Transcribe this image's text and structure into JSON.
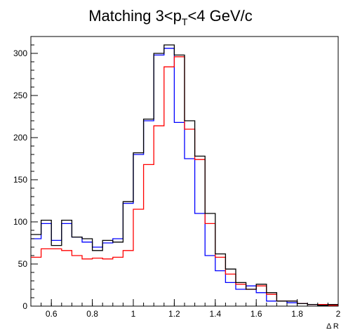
{
  "chart_data": {
    "type": "line",
    "title_main": "Matching 3<p",
    "title_sub": "T",
    "title_tail": "<4 GeV/c",
    "xlabel": "Δ R",
    "ylabel": "",
    "xlim": [
      0.5,
      2.0
    ],
    "ylim": [
      0,
      320
    ],
    "x_ticks": [
      0.6,
      0.8,
      1,
      1.2,
      1.4,
      1.6,
      1.8,
      2
    ],
    "x_tick_labels": [
      "0.6",
      "0.8",
      "1",
      "1.2",
      "1.4",
      "1.6",
      "1.8",
      "2"
    ],
    "y_ticks": [
      0,
      50,
      100,
      150,
      200,
      250,
      300
    ],
    "y_tick_labels": [
      "0",
      "50",
      "100",
      "150",
      "200",
      "250",
      "300"
    ],
    "grid": false,
    "bin_edges": [
      0.5,
      0.55,
      0.6,
      0.65,
      0.7,
      0.75,
      0.8,
      0.85,
      0.9,
      0.95,
      1.0,
      1.05,
      1.1,
      1.15,
      1.2,
      1.25,
      1.3,
      1.35,
      1.4,
      1.45,
      1.5,
      1.55,
      1.6,
      1.65,
      1.7,
      1.75,
      1.8,
      1.85,
      1.9,
      1.95,
      2.0
    ],
    "series": [
      {
        "color": "#0000ff",
        "values": [
          80,
          98,
          78,
          98,
          82,
          76,
          70,
          75,
          80,
          122,
          180,
          220,
          298,
          306,
          218,
          175,
          110,
          60,
          42,
          28,
          20,
          24,
          16,
          6,
          6,
          4,
          3,
          2,
          1,
          2
        ]
      },
      {
        "color": "#ff0000",
        "values": [
          58,
          68,
          68,
          66,
          60,
          56,
          57,
          56,
          58,
          66,
          115,
          168,
          214,
          284,
          296,
          210,
          174,
          98,
          58,
          38,
          26,
          20,
          24,
          14,
          6,
          6,
          3,
          2,
          2,
          1
        ]
      },
      {
        "color": "#000000",
        "values": [
          85,
          102,
          72,
          102,
          82,
          80,
          66,
          78,
          76,
          124,
          182,
          222,
          300,
          310,
          298,
          220,
          178,
          110,
          62,
          44,
          28,
          20,
          26,
          16,
          6,
          6,
          3,
          2,
          1,
          2
        ]
      }
    ]
  }
}
